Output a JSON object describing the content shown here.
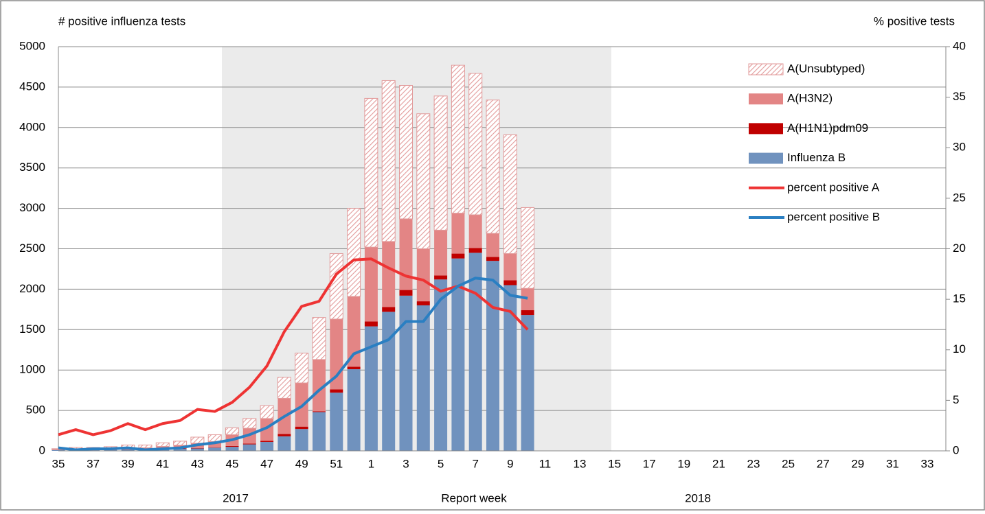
{
  "chart_data": {
    "type": "combo",
    "y_label": "# positive influenza tests",
    "y2_label": "% positive tests",
    "x_label": "Report week",
    "annotations": [
      "2017",
      "2018"
    ],
    "categories": [
      "35",
      null,
      "37",
      null,
      "39",
      null,
      "41",
      null,
      "43",
      null,
      "45",
      null,
      "47",
      null,
      "49",
      null,
      "51",
      null,
      "1",
      null,
      "3",
      null,
      "5",
      null,
      "7",
      null,
      "9",
      null,
      "11",
      null,
      "13",
      null,
      "15",
      null,
      "17",
      null,
      "19",
      null,
      "21",
      null,
      "23",
      null,
      "25",
      null,
      "27",
      null,
      "29",
      null,
      "31",
      null,
      "33",
      null
    ],
    "ylim": [
      0,
      5000
    ],
    "yticks": [
      0,
      500,
      1000,
      1500,
      2000,
      2500,
      3000,
      3500,
      4000,
      4500,
      5000
    ],
    "y2lim": [
      0,
      40
    ],
    "y2ticks": [
      0,
      5,
      10,
      15,
      20,
      25,
      30,
      35,
      40
    ],
    "grid": true,
    "legend": "top-right",
    "series": [
      {
        "name": "Influenza B",
        "type": "bar",
        "color": "#7092be",
        "values": [
          10,
          10,
          10,
          10,
          15,
          15,
          20,
          25,
          30,
          40,
          50,
          80,
          110,
          180,
          270,
          480,
          720,
          1010,
          1540,
          1720,
          1920,
          1800,
          2120,
          2380,
          2450,
          2350,
          2050,
          1680,
          null,
          null,
          null,
          null,
          null,
          null,
          null,
          null,
          null,
          null,
          null,
          null,
          null,
          null,
          null,
          null,
          null,
          null,
          null,
          null,
          null,
          null,
          null,
          null
        ]
      },
      {
        "name": "A(H1N1)pdm09",
        "type": "bar",
        "color": "#c00000",
        "values": [
          2,
          2,
          2,
          2,
          3,
          3,
          5,
          5,
          5,
          5,
          10,
          10,
          15,
          30,
          30,
          10,
          40,
          30,
          60,
          60,
          70,
          50,
          50,
          60,
          60,
          50,
          60,
          60,
          null,
          null,
          null,
          null,
          null,
          null,
          null,
          null,
          null,
          null,
          null,
          null,
          null,
          null,
          null,
          null,
          null,
          null,
          null,
          null,
          null,
          null,
          null,
          null
        ]
      },
      {
        "name": "A(H3N2)",
        "type": "bar",
        "color": "#e38585",
        "values": [
          5,
          10,
          10,
          15,
          20,
          20,
          30,
          40,
          60,
          70,
          140,
          190,
          275,
          440,
          540,
          640,
          870,
          870,
          920,
          810,
          880,
          650,
          560,
          500,
          410,
          290,
          330,
          270,
          null,
          null,
          null,
          null,
          null,
          null,
          null,
          null,
          null,
          null,
          null,
          null,
          null,
          null,
          null,
          null,
          null,
          null,
          null,
          null,
          null,
          null,
          null,
          null
        ]
      },
      {
        "name": "A(Unsubtyped)",
        "type": "bar",
        "color": "#e29a9a",
        "pattern": "hatch",
        "values": [
          10,
          20,
          20,
          25,
          35,
          35,
          45,
          50,
          75,
          85,
          85,
          120,
          160,
          260,
          370,
          520,
          810,
          1090,
          1840,
          1990,
          1650,
          1670,
          1660,
          1830,
          1750,
          1650,
          1470,
          1000,
          null,
          null,
          null,
          null,
          null,
          null,
          null,
          null,
          null,
          null,
          null,
          null,
          null,
          null,
          null,
          null,
          null,
          null,
          null,
          null,
          null,
          null,
          null,
          null
        ]
      },
      {
        "name": "percent positive A",
        "type": "line",
        "axis": "y2",
        "color": "#ee3333",
        "values": [
          1.6,
          2.1,
          1.6,
          2.0,
          2.7,
          2.1,
          2.7,
          3.0,
          4.1,
          3.9,
          4.8,
          6.3,
          8.4,
          11.8,
          14.3,
          14.8,
          17.5,
          18.9,
          19.0,
          18.1,
          17.3,
          16.9,
          15.8,
          16.3,
          15.6,
          14.2,
          13.8,
          12.0,
          null,
          null,
          null,
          null,
          null,
          null,
          null,
          null,
          null,
          null,
          null,
          null,
          null,
          null,
          null,
          null,
          null,
          null,
          null,
          null,
          null,
          null,
          null,
          null
        ]
      },
      {
        "name": "percent positive B",
        "type": "line",
        "axis": "y2",
        "color": "#2a7fc2",
        "values": [
          0.3,
          0.1,
          0.2,
          0.2,
          0.3,
          0.1,
          0.2,
          0.3,
          0.6,
          0.8,
          1.1,
          1.6,
          2.3,
          3.4,
          4.4,
          6.0,
          7.4,
          9.6,
          10.3,
          11.0,
          12.8,
          12.8,
          15.0,
          16.3,
          17.1,
          16.9,
          15.4,
          15.1,
          null,
          null,
          null,
          null,
          null,
          null,
          null,
          null,
          null,
          null,
          null,
          null,
          null,
          null,
          null,
          null,
          null,
          null,
          null,
          null,
          null,
          null,
          null,
          null
        ]
      }
    ]
  }
}
